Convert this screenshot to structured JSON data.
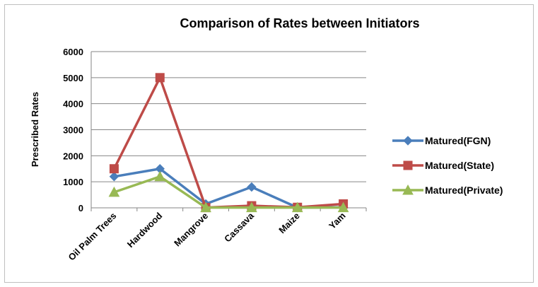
{
  "chart_data": {
    "type": "line",
    "title": "Comparison of Rates between Initiators",
    "xlabel": "",
    "ylabel": "Prescribed Rates",
    "categories": [
      "Oil Palm Trees",
      "Hardwood",
      "Mangrove",
      "Cassava",
      "Maize",
      "Yam"
    ],
    "ylim": [
      0,
      6000
    ],
    "yticks": [
      "0",
      "1000",
      "2000",
      "3000",
      "4000",
      "5000",
      "6000"
    ],
    "grid": true,
    "legend_position": "right",
    "series": [
      {
        "name": "Matured(FGN)",
        "color": "#4a7ebb",
        "marker": "diamond",
        "values": [
          1200,
          1500,
          150,
          800,
          10,
          20
        ]
      },
      {
        "name": "Matured(State)",
        "color": "#be4b48",
        "marker": "square",
        "values": [
          1500,
          5000,
          10,
          80,
          20,
          150
        ]
      },
      {
        "name": "Matured(Private)",
        "color": "#98b954",
        "marker": "triangle",
        "values": [
          600,
          1200,
          10,
          10,
          10,
          10
        ]
      }
    ]
  }
}
